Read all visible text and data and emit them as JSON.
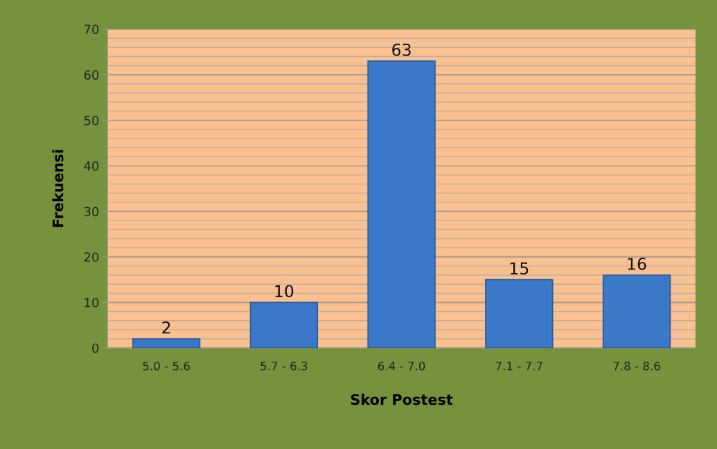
{
  "chart_data": {
    "type": "bar",
    "xlabel": "Skor Postest",
    "ylabel": "Frekuensi",
    "categories": [
      "5.0 - 5.6",
      "5.7 - 6.3",
      "6.4 - 7.0",
      "7.1 - 7.7",
      "7.8 - 8.6"
    ],
    "values": [
      2,
      10,
      63,
      15,
      16
    ],
    "color": "#3c78c8",
    "ylim": [
      0,
      70
    ],
    "yticks": [
      0,
      10,
      20,
      30,
      40,
      50,
      60,
      70
    ],
    "grid": "y",
    "data_labels": true,
    "legend": false
  }
}
